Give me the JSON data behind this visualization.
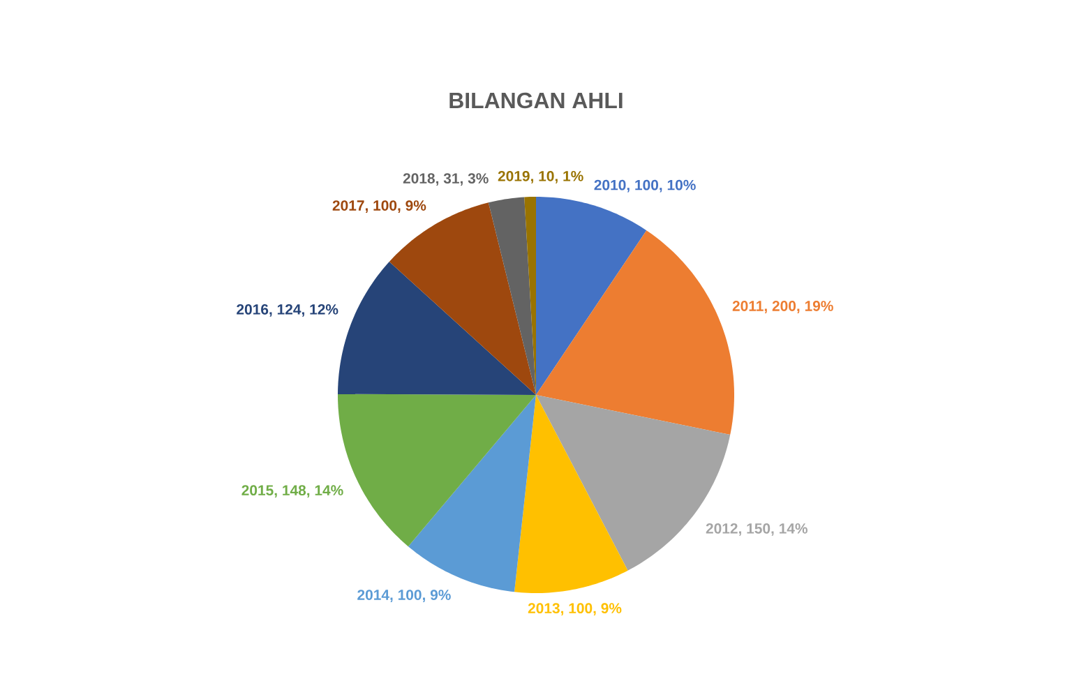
{
  "chart_data": {
    "type": "pie",
    "title": "BILANGAN AHLI",
    "categories": [
      "2010",
      "2011",
      "2012",
      "2013",
      "2014",
      "2015",
      "2016",
      "2017",
      "2018",
      "2019"
    ],
    "values": [
      100,
      200,
      150,
      100,
      100,
      148,
      124,
      100,
      31,
      10
    ],
    "colors": [
      "#4472c4",
      "#ed7d31",
      "#a5a5a5",
      "#ffc000",
      "#5b9bd5",
      "#70ad47",
      "#264478",
      "#9e480e",
      "#636363",
      "#997300"
    ],
    "value_labels": [
      ", 100, 10%",
      ", 200, 19%",
      ", 150, 14%",
      ", 100, 9%",
      ", 100, 9%",
      ", 148, 14%",
      ", 124, 12%",
      ", 100, 9%",
      ", 31, 3%",
      ", 10, 1%"
    ]
  }
}
